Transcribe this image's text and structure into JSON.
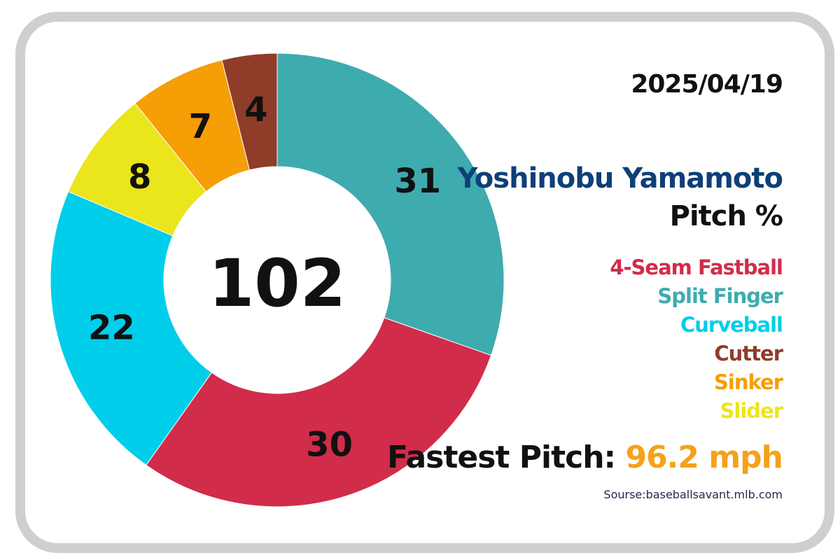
{
  "date": "2025/04/19",
  "player_name": "Yoshinobu Yamamoto",
  "subtitle": "Pitch %",
  "fastest_label": "Fastest Pitch:",
  "fastest_value": "96.2 mph",
  "source": "Sourse:baseballsavant.mlb.com",
  "colors": {
    "player_name": "#0e3f77",
    "fastest_value": "#f5a11a"
  },
  "legend": [
    {
      "label": "4-Seam Fastball",
      "color": "#d12c4a"
    },
    {
      "label": "Split Finger",
      "color": "#3eabaf"
    },
    {
      "label": "Curveball",
      "color": "#00ceea"
    },
    {
      "label": "Cutter",
      "color": "#8f3c29"
    },
    {
      "label": "Sinker",
      "color": "#f59e06"
    },
    {
      "label": "Slider",
      "color": "#ebe51c"
    }
  ],
  "chart_data": {
    "type": "pie",
    "donut": true,
    "total": "102",
    "series": [
      {
        "name": "Split Finger",
        "value": 31,
        "color": "#3eabaf"
      },
      {
        "name": "4-Seam Fastball",
        "value": 30,
        "color": "#d12c4a"
      },
      {
        "name": "Curveball",
        "value": 22,
        "color": "#00ceea"
      },
      {
        "name": "Slider",
        "value": 8,
        "color": "#ebe51c"
      },
      {
        "name": "Sinker",
        "value": 7,
        "color": "#f59e06"
      },
      {
        "name": "Cutter",
        "value": 4,
        "color": "#8f3c29"
      }
    ],
    "legend_position": "right"
  }
}
